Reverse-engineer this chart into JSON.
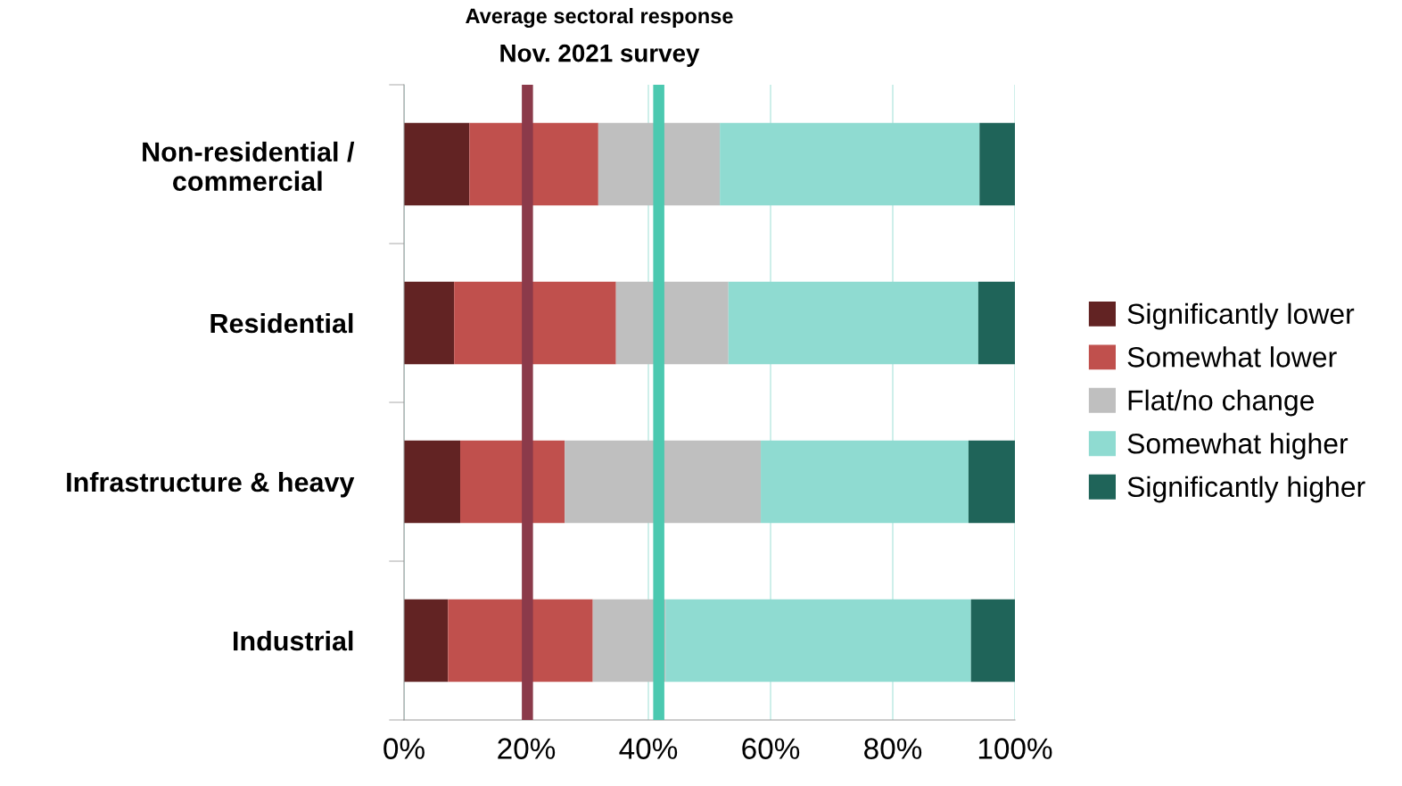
{
  "chart_data": {
    "type": "bar",
    "orientation": "horizontal",
    "stacked": true,
    "title": "Average sectoral response",
    "subtitle": "Nov. 2021 survey",
    "categories": [
      "Non-residential / commercial",
      "Residential",
      "Infrastructure & heavy",
      "Industrial"
    ],
    "series": [
      {
        "name": "Significantly lower",
        "color": "#622323",
        "values": [
          10.7,
          8.2,
          9.2,
          7.2
        ]
      },
      {
        "name": "Somewhat lower",
        "color": "#c0504d",
        "values": [
          21.1,
          26.5,
          17.1,
          23.7
        ]
      },
      {
        "name": "Flat/no change",
        "color": "#bfbfbf",
        "values": [
          19.9,
          18.4,
          32.1,
          11.9
        ]
      },
      {
        "name": "Somewhat higher",
        "color": "#8fdbd1",
        "values": [
          42.5,
          40.9,
          34.0,
          50.0
        ]
      },
      {
        "name": "Significantly higher",
        "color": "#1f6459",
        "values": [
          5.8,
          6.0,
          7.6,
          7.2
        ]
      }
    ],
    "xlim": [
      0,
      100
    ],
    "xticks": [
      {
        "value": 0,
        "label": "0%"
      },
      {
        "value": 20,
        "label": "20%"
      },
      {
        "value": 40,
        "label": "40%"
      },
      {
        "value": 60,
        "label": "60%"
      },
      {
        "value": 80,
        "label": "80%"
      },
      {
        "value": 100,
        "label": "100%"
      }
    ],
    "ref_lines": [
      {
        "axis": "x",
        "value": 20.2,
        "color": "#8b3a4a"
      },
      {
        "axis": "x",
        "value": 41.7,
        "color": "#4cc9b0"
      }
    ],
    "grid": "x",
    "legend": "right"
  }
}
